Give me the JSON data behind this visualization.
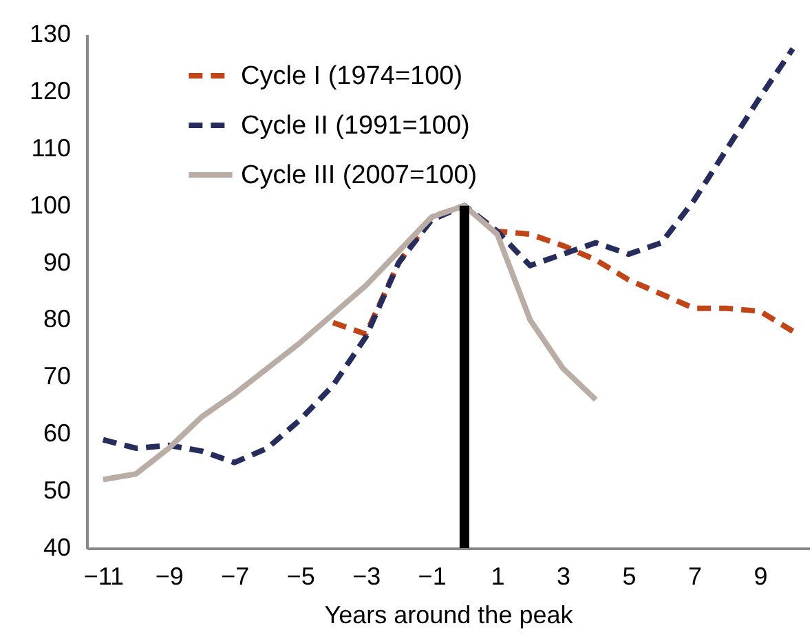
{
  "chart_data": {
    "type": "line",
    "xlabel": "Years around the peak",
    "xlim": [
      -11.5,
      10.5
    ],
    "xticks": [
      -11,
      -9,
      -7,
      -5,
      -3,
      -1,
      1,
      3,
      5,
      7,
      9
    ],
    "ylim": [
      40,
      130
    ],
    "yticks": [
      40,
      50,
      60,
      70,
      80,
      90,
      100,
      110,
      120,
      130
    ],
    "grid": false,
    "legend": "top left",
    "marker": "none",
    "ref_lines": [
      {
        "axis": "x",
        "value": 0,
        "color": "#000000"
      }
    ],
    "series": [
      {
        "name": "Cycle I   (1974=100)",
        "color": "#c0461a",
        "line_style": "dashed",
        "x": [
          -4,
          -3,
          -2,
          -1,
          0,
          1,
          2,
          3,
          4,
          5,
          6,
          7,
          8,
          9,
          10
        ],
        "values": [
          79.5,
          77.5,
          90,
          98,
          100,
          95.5,
          95,
          93,
          90.5,
          87,
          84.5,
          82,
          82,
          81.5,
          78
        ]
      },
      {
        "name": "Cycle II  (1991=100)",
        "color": "#262c5c",
        "line_style": "dashed",
        "x": [
          -11,
          -10,
          -9,
          -8,
          -7,
          -6,
          -5,
          -4,
          -3,
          -2,
          -1,
          0,
          1,
          2,
          3,
          4,
          5,
          6,
          7,
          8,
          9,
          10
        ],
        "values": [
          59,
          57.5,
          58,
          57,
          55,
          57.5,
          62.5,
          68.5,
          77,
          90,
          97.5,
          100,
          95.5,
          89.5,
          91.5,
          93.5,
          91.5,
          93.5,
          101,
          110,
          119,
          127.5
        ]
      },
      {
        "name": "Cycle III (2007=100)",
        "color": "#b9ada5",
        "line_style": "solid",
        "x": [
          -11,
          -10,
          -9,
          -8,
          -7,
          -6,
          -5,
          -4,
          -3,
          -2,
          -1,
          0,
          1,
          2,
          3,
          4
        ],
        "values": [
          52,
          53,
          57.5,
          63,
          67,
          71.5,
          76,
          81,
          86,
          92,
          98,
          100,
          95,
          80,
          71.5,
          66
        ]
      }
    ]
  }
}
